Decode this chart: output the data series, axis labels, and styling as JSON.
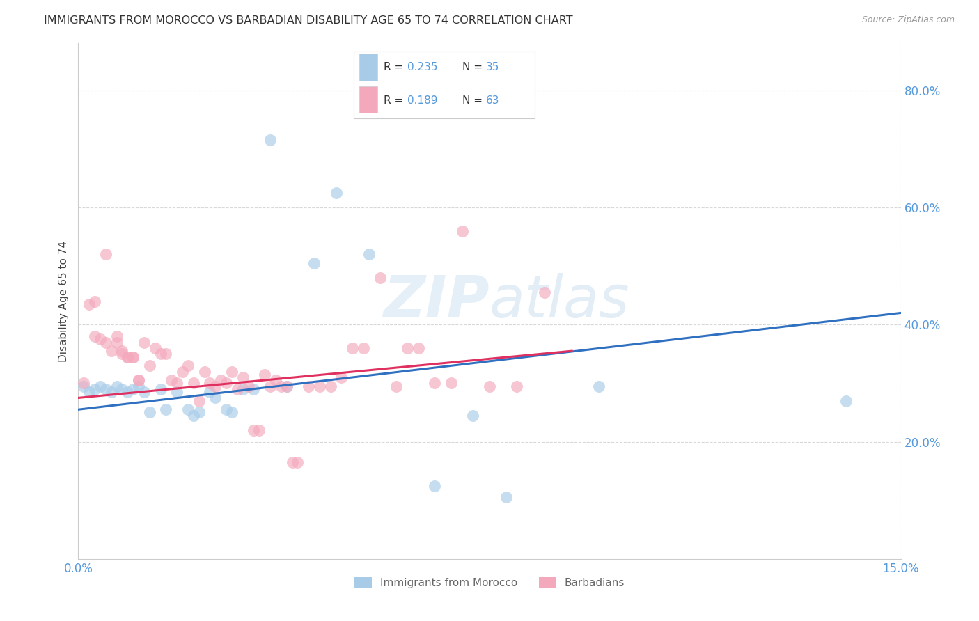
{
  "title": "IMMIGRANTS FROM MOROCCO VS BARBADIAN DISABILITY AGE 65 TO 74 CORRELATION CHART",
  "source": "Source: ZipAtlas.com",
  "ylabel": "Disability Age 65 to 74",
  "xlim": [
    0.0,
    0.15
  ],
  "ylim": [
    0.0,
    0.88
  ],
  "ytick_values": [
    0.2,
    0.4,
    0.6,
    0.8
  ],
  "xtick_values": [
    0.0,
    0.15
  ],
  "color_blue": "#a8cce8",
  "color_pink": "#f4a8bc",
  "line_color_blue": "#3070c0",
  "line_color_pink": "#e03060",
  "tick_color": "#5599dd",
  "watermark_color": "#d0e8f5",
  "grid_color": "#d8d8d8",
  "blue_line_x0": 0.0,
  "blue_line_y0": 0.255,
  "blue_line_x1": 0.15,
  "blue_line_y1": 0.42,
  "pink_line_x0": 0.0,
  "pink_line_y0": 0.275,
  "pink_line_x1": 0.09,
  "pink_line_y1": 0.355,
  "blue_x": [
    0.001,
    0.002,
    0.003,
    0.004,
    0.005,
    0.006,
    0.007,
    0.008,
    0.009,
    0.01,
    0.011,
    0.012,
    0.013,
    0.015,
    0.016,
    0.018,
    0.02,
    0.021,
    0.022,
    0.024,
    0.025,
    0.027,
    0.028,
    0.03,
    0.032,
    0.035,
    0.038,
    0.043,
    0.047,
    0.053,
    0.065,
    0.072,
    0.078,
    0.14,
    0.095
  ],
  "blue_y": [
    0.295,
    0.285,
    0.29,
    0.295,
    0.29,
    0.285,
    0.295,
    0.29,
    0.285,
    0.29,
    0.295,
    0.285,
    0.25,
    0.29,
    0.255,
    0.285,
    0.255,
    0.245,
    0.25,
    0.285,
    0.275,
    0.255,
    0.25,
    0.29,
    0.29,
    0.715,
    0.295,
    0.505,
    0.625,
    0.52,
    0.125,
    0.245,
    0.105,
    0.27,
    0.295
  ],
  "pink_x": [
    0.001,
    0.002,
    0.003,
    0.004,
    0.005,
    0.006,
    0.007,
    0.008,
    0.009,
    0.01,
    0.011,
    0.012,
    0.013,
    0.014,
    0.015,
    0.016,
    0.017,
    0.018,
    0.019,
    0.02,
    0.021,
    0.022,
    0.023,
    0.024,
    0.025,
    0.026,
    0.027,
    0.028,
    0.029,
    0.03,
    0.031,
    0.032,
    0.033,
    0.034,
    0.035,
    0.036,
    0.037,
    0.038,
    0.039,
    0.04,
    0.042,
    0.044,
    0.046,
    0.048,
    0.05,
    0.052,
    0.055,
    0.058,
    0.06,
    0.062,
    0.065,
    0.068,
    0.07,
    0.075,
    0.08,
    0.003,
    0.005,
    0.007,
    0.008,
    0.009,
    0.01,
    0.011,
    0.085
  ],
  "pink_y": [
    0.3,
    0.435,
    0.44,
    0.375,
    0.52,
    0.355,
    0.38,
    0.35,
    0.345,
    0.345,
    0.305,
    0.37,
    0.33,
    0.36,
    0.35,
    0.35,
    0.305,
    0.3,
    0.32,
    0.33,
    0.3,
    0.27,
    0.32,
    0.3,
    0.295,
    0.305,
    0.3,
    0.32,
    0.29,
    0.31,
    0.295,
    0.22,
    0.22,
    0.315,
    0.295,
    0.305,
    0.295,
    0.295,
    0.165,
    0.165,
    0.295,
    0.295,
    0.295,
    0.31,
    0.36,
    0.36,
    0.48,
    0.295,
    0.36,
    0.36,
    0.3,
    0.3,
    0.56,
    0.295,
    0.295,
    0.38,
    0.37,
    0.37,
    0.355,
    0.345,
    0.345,
    0.305,
    0.455
  ]
}
